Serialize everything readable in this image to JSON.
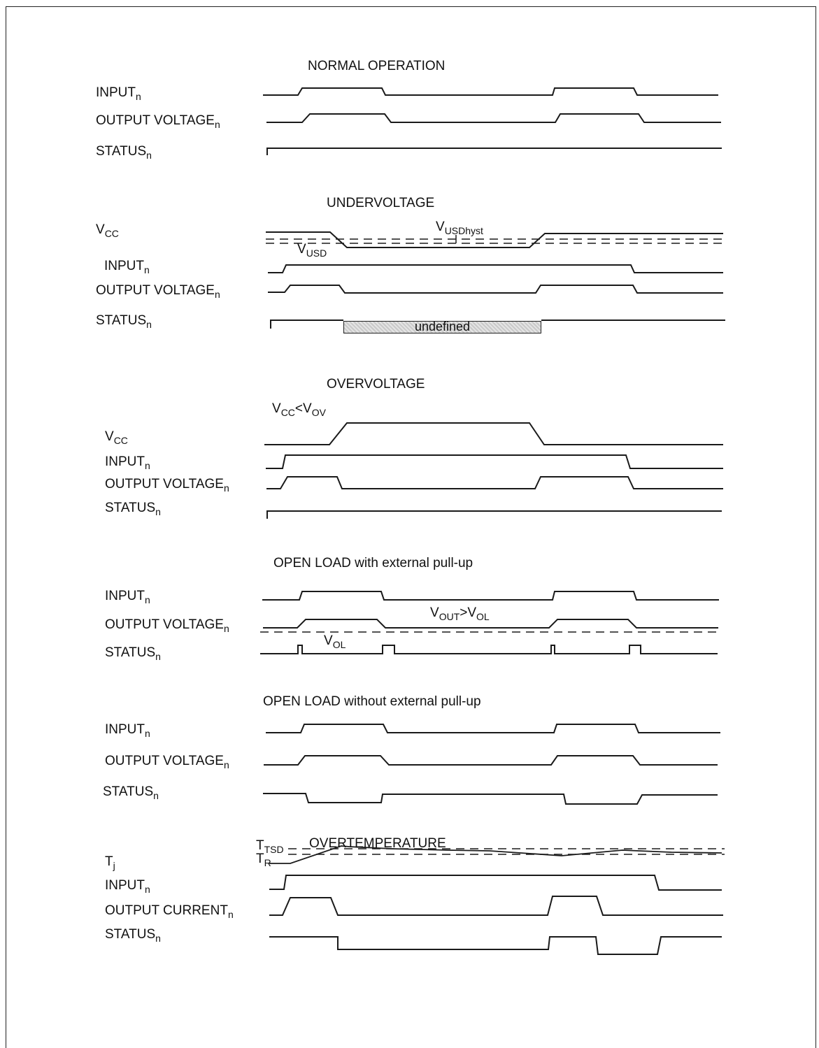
{
  "sections": {
    "normal": {
      "title": "NORMAL OPERATION",
      "labels": {
        "input": {
          "main": "INPUT",
          "sub": "n"
        },
        "output": {
          "main": "OUTPUT VOLTAGE",
          "sub": "n"
        },
        "status": {
          "main": "STATUS",
          "sub": "n"
        }
      }
    },
    "undervoltage": {
      "title": "UNDERVOLTAGE",
      "labels": {
        "vcc": {
          "main": "V",
          "sub": "CC"
        },
        "input": {
          "main": "INPUT",
          "sub": "n"
        },
        "output": {
          "main": "OUTPUT VOLTAGE",
          "sub": "n"
        },
        "status": {
          "main": "STATUS",
          "sub": "n"
        }
      },
      "annotations": {
        "vusdhyst": {
          "main": "V",
          "sub": "USDhyst"
        },
        "vusd": {
          "main": "V",
          "sub": "USD"
        },
        "undefined": "undefined"
      }
    },
    "overvoltage": {
      "title": "OVERVOLTAGE",
      "labels": {
        "vcc": {
          "main": "V",
          "sub": "CC"
        },
        "input": {
          "main": "INPUT",
          "sub": "n"
        },
        "output": {
          "main": "OUTPUT VOLTAGE",
          "sub": "n"
        },
        "status": {
          "main": "STATUS",
          "sub": "n"
        }
      },
      "annotations": {
        "vcc_lt_vov": {
          "a": "V",
          "a_sub": "CC",
          "op": "<",
          "b": "V",
          "b_sub": "OV"
        }
      }
    },
    "open_load_pullup": {
      "title": "OPEN LOAD with external pull-up",
      "labels": {
        "input": {
          "main": "INPUT",
          "sub": "n"
        },
        "output": {
          "main": "OUTPUT VOLTAGE",
          "sub": "n"
        },
        "status": {
          "main": "STATUS",
          "sub": "n"
        }
      },
      "annotations": {
        "vout_gt_vol": {
          "a": "V",
          "a_sub": "OUT",
          "op": ">",
          "b": "V",
          "b_sub": "OL"
        },
        "vol": {
          "main": "V",
          "sub": "OL"
        }
      }
    },
    "open_load_no_pullup": {
      "title": "OPEN LOAD without external pull-up",
      "labels": {
        "input": {
          "main": "INPUT",
          "sub": "n"
        },
        "output": {
          "main": "OUTPUT VOLTAGE",
          "sub": "n"
        },
        "status": {
          "main": "STATUS",
          "sub": "n"
        }
      }
    },
    "overtemperature": {
      "title": "OVERTEMPERATURE",
      "labels": {
        "tj": {
          "main": "T",
          "sub": "j"
        },
        "input": {
          "main": "INPUT",
          "sub": "n"
        },
        "output": {
          "main": "OUTPUT CURRENT",
          "sub": "n"
        },
        "status": {
          "main": "STATUS",
          "sub": "n"
        }
      },
      "annotations": {
        "ttsd": {
          "main": "T",
          "sub": "TSD"
        },
        "tr": {
          "main": "T",
          "sub": "R"
        }
      }
    }
  },
  "style": {
    "line_color": "#1a1a1a",
    "undefined_fill": "#d6d6d6"
  }
}
